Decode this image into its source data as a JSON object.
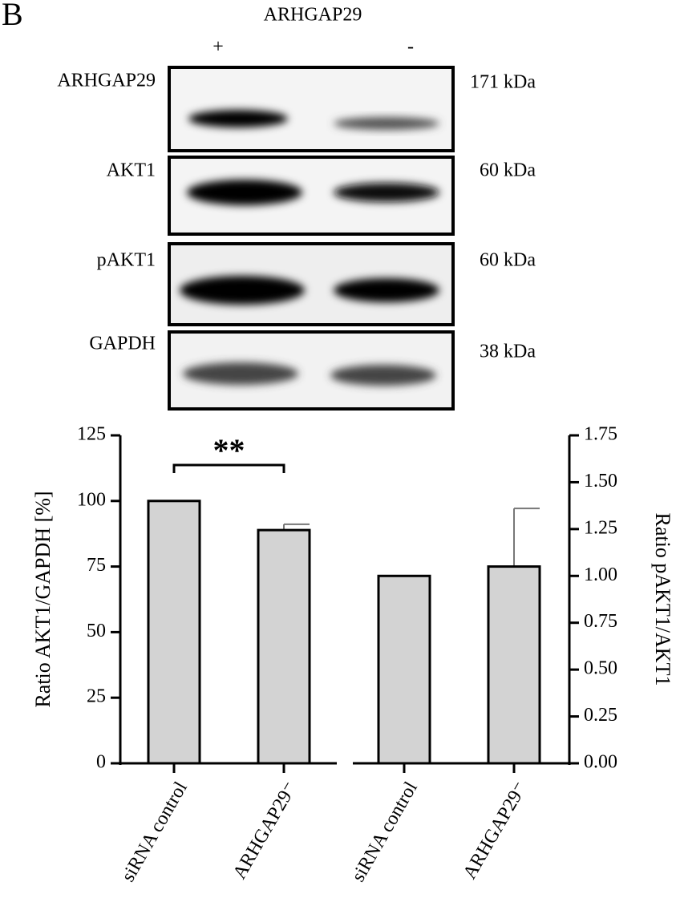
{
  "panel_label": "B",
  "blot": {
    "title": "ARHGAP29",
    "lanes": [
      "+",
      "-"
    ],
    "rows": [
      {
        "label": "ARHGAP29",
        "size": "171 kDa"
      },
      {
        "label": "AKT1",
        "size": "60 kDa"
      },
      {
        "label": "pAKT1",
        "size": "60 kDa"
      },
      {
        "label": "GAPDH",
        "size": "38 kDa"
      }
    ]
  },
  "chart_data": {
    "type": "bar",
    "categories": [
      "siRNA control",
      "ARHGAP29⁻",
      "siRNA control",
      "ARHGAP29⁻"
    ],
    "series": [
      {
        "color": "#d3d3d3",
        "values": [
          100,
          88.9,
          null,
          null
        ],
        "errors": [
          0,
          2.2,
          null,
          null
        ]
      },
      {
        "color": "#d3d3d3",
        "axis": "y2",
        "values": [
          null,
          null,
          1.0,
          1.05
        ],
        "errors": [
          null,
          null,
          0,
          0.31
        ]
      }
    ],
    "ylabel": "Ratio AKT1/GAPDH [%]",
    "y2label": "Ratio pAKT1/AKT1",
    "ylim": [
      0,
      125
    ],
    "yticks": [
      0,
      25,
      50,
      75,
      100,
      125
    ],
    "y2lim": [
      0,
      1.75
    ],
    "y2ticks": [
      {
        "value": 0,
        "label": "0.00"
      },
      {
        "value": 0.25,
        "label": "0.25"
      },
      {
        "value": 0.5,
        "label": "0.50"
      },
      {
        "value": 0.75,
        "label": "0.75"
      },
      {
        "value": 1.0,
        "label": "1.00"
      },
      {
        "value": 1.25,
        "label": "1.25"
      },
      {
        "value": 1.5,
        "label": "1.50"
      },
      {
        "value": 1.75,
        "label": "1.75"
      }
    ],
    "annotations": [
      {
        "text": "**",
        "from": 0,
        "to": 1
      }
    ]
  }
}
